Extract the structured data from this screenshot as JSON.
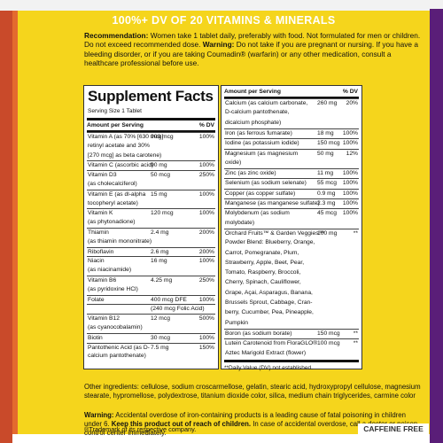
{
  "colors": {
    "panel": "#f5d51c",
    "left_edge": "#c94a2a",
    "right_edge": "#5a1e78",
    "headline": "#ffffff"
  },
  "headline": "100%+ DV OF 20 VITAMINS & MINERALS",
  "recommendation": {
    "label": "Recommendation:",
    "text1": "Women take 1 tablet daily, preferably with food. Not formulated for men or children. Do not exceed recommended dose.",
    "warning_label": "Warning:",
    "text2": "Do not take if you are pregnant or nursing. If you have a bleeding disorder, or if you are taking Coumadin® (warfarin) or any other medication, consult a healthcare professional before use."
  },
  "facts": {
    "title": "Supplement Facts",
    "serving_size": "Serving Size 1 Tablet",
    "header_left": "Amount per Serving",
    "header_dv": "% DV",
    "left_rows": [
      {
        "n": "Vitamin A (as 70% [630 mcg]",
        "a": "900 mcg",
        "d": "100%"
      },
      {
        "n": "retinyl acetate and 30%",
        "a": "",
        "d": ""
      },
      {
        "n": "[270 mcg] as beta carotene)",
        "a": "",
        "d": ""
      },
      {
        "n": "Vitamin C (ascorbic acid)",
        "a": "90 mg",
        "d": "100%"
      },
      {
        "n": "Vitamin D3",
        "a": "50 mcg",
        "d": "250%"
      },
      {
        "n": "(as cholecalciferol)",
        "a": "",
        "d": ""
      },
      {
        "n": "Vitamin E (as dl-alpha",
        "a": "15 mg",
        "d": "100%"
      },
      {
        "n": "tocopheryl acetate)",
        "a": "",
        "d": ""
      },
      {
        "n": "Vitamin K",
        "a": "120 mcg",
        "d": "100%"
      },
      {
        "n": "(as phytonadione)",
        "a": "",
        "d": ""
      },
      {
        "n": "Thiamin",
        "a": "2.4 mg",
        "d": "200%"
      },
      {
        "n": "(as thiamin mononitrate)",
        "a": "",
        "d": ""
      },
      {
        "n": "Riboflavin",
        "a": "2.6 mg",
        "d": "200%"
      },
      {
        "n": "Niacin",
        "a": "16 mg",
        "d": "100%"
      },
      {
        "n": "(as niacinamide)",
        "a": "",
        "d": ""
      },
      {
        "n": "Vitamin B6",
        "a": "4.25 mg",
        "d": "250%"
      },
      {
        "n": "(as pyridoxine HCl)",
        "a": "",
        "d": ""
      },
      {
        "n": "Folate",
        "a": "400 mcg DFE",
        "d": "100%"
      },
      {
        "n": "",
        "a": "(240 mcg Folic Acid)",
        "d": ""
      },
      {
        "n": "Vitamin B12",
        "a": "12 mcg",
        "d": "500%"
      },
      {
        "n": "(as cyanocobalamin)",
        "a": "",
        "d": ""
      },
      {
        "n": "Biotin",
        "a": "30 mcg",
        "d": "100%"
      },
      {
        "n": "Pantothenic Acid (as D-",
        "a": "7.5 mg",
        "d": "150%"
      },
      {
        "n": "calcium pantothenate)",
        "a": "",
        "d": ""
      }
    ],
    "right_header_left": "Amount per Serving",
    "right_header_dv": "% DV",
    "right_rows": [
      {
        "n": "Calcium (as calcium carbonate,",
        "a": "260 mg",
        "d": "20%"
      },
      {
        "n": "D-calcium pantothenate,",
        "a": "",
        "d": ""
      },
      {
        "n": "dicalcium phosphate)",
        "a": "",
        "d": ""
      },
      {
        "n": "Iron (as ferrous fumarate)",
        "a": "18 mg",
        "d": "100%"
      },
      {
        "n": "Iodine (as potassium iodide)",
        "a": "150 mcg",
        "d": "100%"
      },
      {
        "n": "Magnesium (as magnesium",
        "a": "50 mg",
        "d": "12%"
      },
      {
        "n": "oxide)",
        "a": "",
        "d": ""
      },
      {
        "n": "Zinc (as zinc oxide)",
        "a": "11 mg",
        "d": "100%"
      },
      {
        "n": "Selenium (as sodium selenate)",
        "a": "55 mcg",
        "d": "100%"
      },
      {
        "n": "Copper (as copper sulfate)",
        "a": "0.9 mg",
        "d": "100%"
      },
      {
        "n": "Manganese (as manganese sulfate)",
        "a": "2.3 mg",
        "d": "100%"
      },
      {
        "n": "Molybdenum (as sodium",
        "a": "45 mcg",
        "d": "100%"
      },
      {
        "n": "molybdate)",
        "a": "",
        "d": ""
      },
      {
        "n": "Orchard Fruits™ & Garden Veggies™",
        "a": "100 mg",
        "d": "**"
      },
      {
        "n": "Powder Blend: Blueberry, Orange,",
        "a": "",
        "d": ""
      },
      {
        "n": "Carrot, Pomegranate, Plum,",
        "a": "",
        "d": ""
      },
      {
        "n": "Strawberry, Apple, Beet, Pear,",
        "a": "",
        "d": ""
      },
      {
        "n": "Tomato, Raspberry, Broccoli,",
        "a": "",
        "d": ""
      },
      {
        "n": "Cherry, Spinach, Cauliflower,",
        "a": "",
        "d": ""
      },
      {
        "n": "Grape, Açai, Asparagus, Banana,",
        "a": "",
        "d": ""
      },
      {
        "n": "Brussels Sprout, Cabbage, Cran-",
        "a": "",
        "d": ""
      },
      {
        "n": "berry, Cucumber, Pea, Pineapple,",
        "a": "",
        "d": ""
      },
      {
        "n": "Pumpkin",
        "a": "",
        "d": ""
      },
      {
        "n": "Boron (as sodium borate)",
        "a": "150 mcg",
        "d": "**"
      },
      {
        "n": "Lutein Carotenoid from FloraGLO®",
        "a": "100 mcg",
        "d": "**"
      },
      {
        "n": "Aztec Marigold Extract (flower)",
        "a": "",
        "d": ""
      }
    ],
    "dv_footnote": "**Daily Value (DV) not established."
  },
  "ingredients": "Other ingredients: cellulose, sodium croscarmellose, gelatin, stearic acid, hydroxypropyl cellulose, magnesium stearate, hypromellose, polydextrose, titanium dioxide color, silica, medium chain triglycerides, carmine color",
  "warning2": {
    "label": "Warning:",
    "text1": "Accidental overdose of iron-containing products is a leading cause of fatal poisoning in children under 6.",
    "bold": "Keep this product out of reach of children.",
    "text2": "In case of accidental overdose, call a doctor or poison control center immediately."
  },
  "trademark": "®Trademark of its respective company.",
  "caffeine_free": "CAFFEINE FREE"
}
